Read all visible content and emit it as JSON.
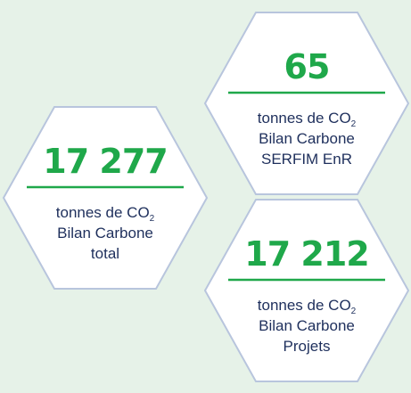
{
  "hexagons": [
    {
      "value": "17 277",
      "unit": "tonnes de CO",
      "subscript": "2",
      "lines": [
        "Bilan Carbone",
        "total"
      ]
    },
    {
      "value": "65",
      "unit": "tonnes de CO",
      "subscript": "2",
      "lines": [
        "Bilan Carbone",
        "SERFIM EnR"
      ]
    },
    {
      "value": "17 212",
      "unit": "tonnes de CO",
      "subscript": "2",
      "lines": [
        "Bilan Carbone",
        "Projets"
      ]
    }
  ]
}
